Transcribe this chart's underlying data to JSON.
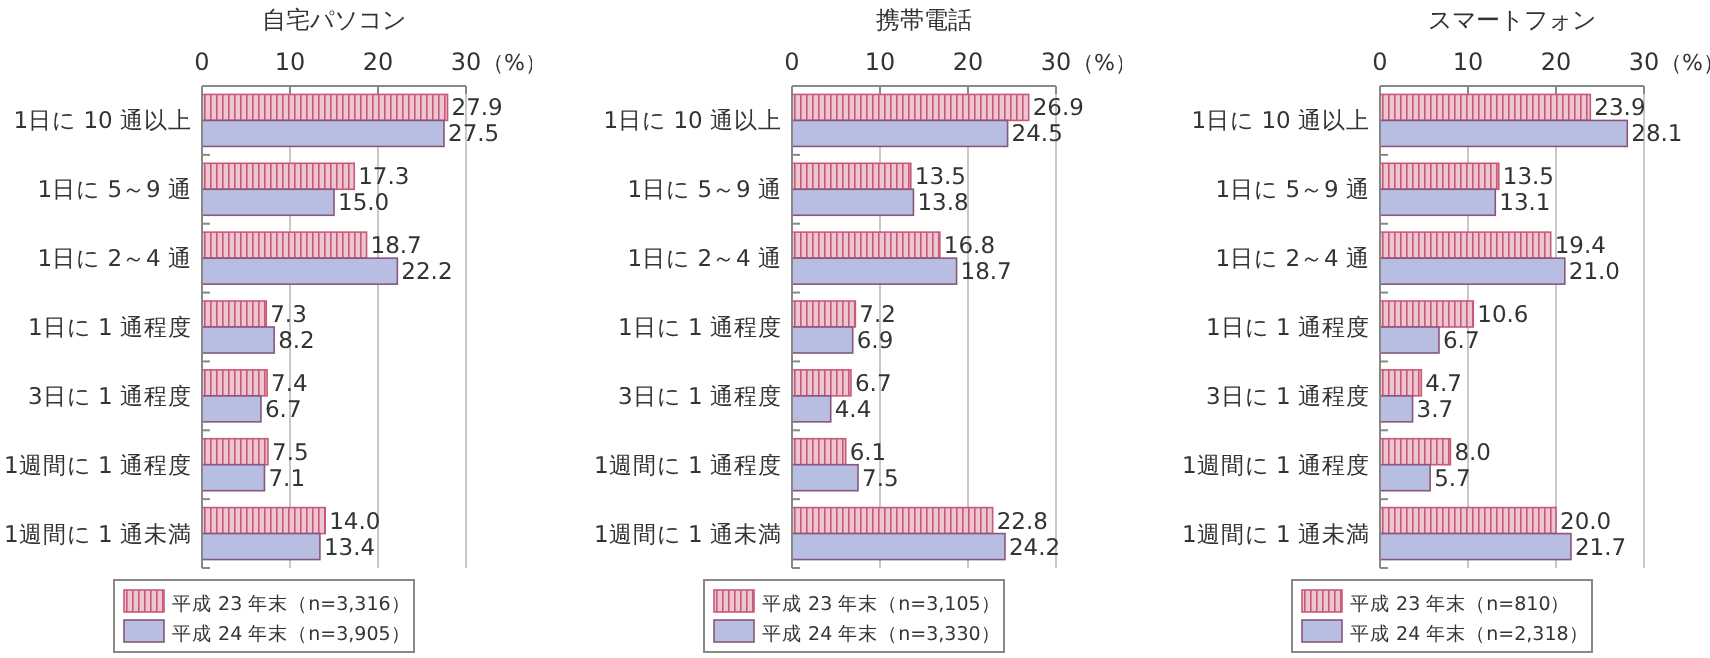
{
  "chart_data": [
    {
      "type": "bar",
      "orientation": "horizontal",
      "title": "自宅パソコン",
      "categories": [
        "1日に 10 通以上",
        "1日に 5～9 通",
        "1日に 2～4 通",
        "1日に 1 通程度",
        "3日に 1 通程度",
        "1週間に 1 通程度",
        "1週間に 1 通未満"
      ],
      "series": [
        {
          "name": "平成 23 年末（n=3,316）",
          "color": "#c85a78",
          "values": [
            27.9,
            17.3,
            18.7,
            7.3,
            7.4,
            7.5,
            14.0
          ],
          "value_labels": [
            "27.9",
            "17.3",
            "18.7",
            "7.3",
            "7.4",
            "7.5",
            "14.0"
          ]
        },
        {
          "name": "平成 24 年末（n=3,905）",
          "color": "#b8bde2",
          "values": [
            27.5,
            15.0,
            22.2,
            8.2,
            6.7,
            7.1,
            13.4
          ],
          "value_labels": [
            "27.5",
            "15.0",
            "22.2",
            "8.2",
            "6.7",
            "7.1",
            "13.4"
          ]
        }
      ],
      "xlim": [
        0,
        30
      ],
      "xticks": [
        0,
        10,
        20,
        30
      ],
      "xlabel": "（%）",
      "grid": "x",
      "legend": "bottom"
    },
    {
      "type": "bar",
      "orientation": "horizontal",
      "title": "携帯電話",
      "categories": [
        "1日に 10 通以上",
        "1日に 5～9 通",
        "1日に 2～4 通",
        "1日に 1 通程度",
        "3日に 1 通程度",
        "1週間に 1 通程度",
        "1週間に 1 通未満"
      ],
      "series": [
        {
          "name": "平成 23 年末（n=3,105）",
          "color": "#c85a78",
          "values": [
            26.9,
            13.5,
            16.8,
            7.2,
            6.7,
            6.1,
            22.8
          ],
          "value_labels": [
            "26.9",
            "13.5",
            "16.8",
            "7.2",
            "6.7",
            "6.1",
            "22.8"
          ]
        },
        {
          "name": "平成 24 年末（n=3,330）",
          "color": "#b8bde2",
          "values": [
            24.5,
            13.8,
            18.7,
            6.9,
            4.4,
            7.5,
            24.2
          ],
          "value_labels": [
            "24.5",
            "13.8",
            "18.7",
            "6.9",
            "4.4",
            "7.5",
            "24.2"
          ]
        }
      ],
      "xlim": [
        0,
        30
      ],
      "xticks": [
        0,
        10,
        20,
        30
      ],
      "xlabel": "（%）",
      "grid": "x",
      "legend": "bottom"
    },
    {
      "type": "bar",
      "orientation": "horizontal",
      "title": "スマートフォン",
      "categories": [
        "1日に 10 通以上",
        "1日に 5～9 通",
        "1日に 2～4 通",
        "1日に 1 通程度",
        "3日に 1 通程度",
        "1週間に 1 通程度",
        "1週間に 1 通未満"
      ],
      "series": [
        {
          "name": "平成 23 年末（n=810）",
          "color": "#c85a78",
          "values": [
            23.9,
            13.5,
            19.4,
            10.6,
            4.7,
            8.0,
            20.0
          ],
          "value_labels": [
            "23.9",
            "13.5",
            "19.4",
            "10.6",
            "4.7",
            "8.0",
            "20.0"
          ]
        },
        {
          "name": "平成 24 年末（n=2,318）",
          "color": "#b8bde2",
          "values": [
            28.1,
            13.1,
            21.0,
            6.7,
            3.7,
            5.7,
            21.7
          ],
          "value_labels": [
            "28.1",
            "13.1",
            "21.0",
            "6.7",
            "3.7",
            "5.7",
            "21.7"
          ]
        }
      ],
      "xlim": [
        0,
        30
      ],
      "xticks": [
        0,
        10,
        20,
        30
      ],
      "xlabel": "（%）",
      "grid": "x",
      "legend": "bottom"
    }
  ]
}
